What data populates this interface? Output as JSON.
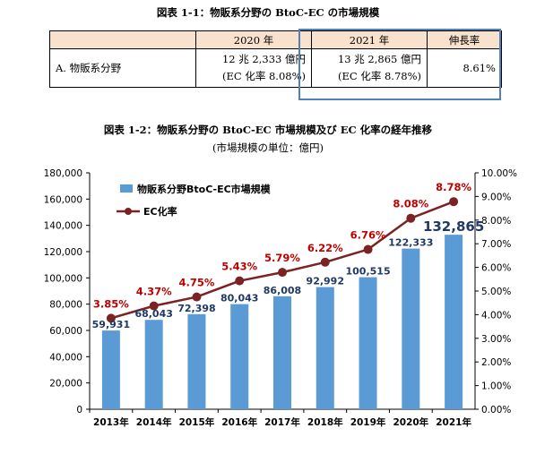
{
  "table": {
    "title": "図表 1-1：物販系分野の BtoC-EC の市場規模",
    "headers": [
      "",
      "2020 年",
      "2021 年",
      "伸長率"
    ],
    "row": {
      "category": "A. 物販系分野",
      "y2020_value": "12 兆 2,333 億円",
      "y2020_rate": "(EC 化率 8.08%)",
      "y2021_value": "13 兆 2,865 億円",
      "y2021_rate": "(EC 化率 8.78%)",
      "growth": "8.61%"
    }
  },
  "chart": {
    "title": "図表 1-2：物販系分野の BtoC-EC 市場規模及び EC 化率の経年推移",
    "subtitle": "(市場規模の単位：億円)"
  },
  "colors": {
    "bar": "#5b9bd5",
    "line": "#7b2323",
    "header_fill": "#f9e2cd",
    "highlight": "#4f81bd",
    "bar_label": "#1f3864",
    "rate_label": "#c00000"
  },
  "chart_data": {
    "type": "bar",
    "categories": [
      "2013年",
      "2014年",
      "2015年",
      "2016年",
      "2017年",
      "2018年",
      "2019年",
      "2020年",
      "2021年"
    ],
    "series": [
      {
        "name": "物販系分野BtoC-EC市場規模",
        "type": "bar",
        "axis": "left",
        "values": [
          59931,
          68043,
          72398,
          80043,
          86008,
          92992,
          100515,
          122333,
          132865
        ],
        "labels": [
          "59,931",
          "68,043",
          "72,398",
          "80,043",
          "86,008",
          "92,992",
          "100,515",
          "122,333",
          "132,865"
        ]
      },
      {
        "name": "EC化率",
        "type": "line",
        "axis": "right",
        "values": [
          3.85,
          4.37,
          4.75,
          5.43,
          5.79,
          6.22,
          6.76,
          8.08,
          8.78
        ],
        "labels": [
          "3.85%",
          "4.37%",
          "4.75%",
          "5.43%",
          "5.79%",
          "6.22%",
          "6.76%",
          "8.08%",
          "8.78%"
        ]
      }
    ],
    "y_left": {
      "lim": [
        0,
        180000
      ],
      "ticks": [
        0,
        20000,
        40000,
        60000,
        80000,
        100000,
        120000,
        140000,
        160000,
        180000
      ],
      "tick_labels": [
        "0",
        "20,000",
        "40,000",
        "60,000",
        "80,000",
        "100,000",
        "120,000",
        "140,000",
        "160,000",
        "180,000"
      ]
    },
    "y_right": {
      "lim": [
        0,
        10
      ],
      "ticks": [
        0,
        1,
        2,
        3,
        4,
        5,
        6,
        7,
        8,
        9,
        10
      ],
      "tick_labels": [
        "0.00%",
        "1.00%",
        "2.00%",
        "3.00%",
        "4.00%",
        "5.00%",
        "6.00%",
        "7.00%",
        "8.00%",
        "9.00%",
        "10.00%"
      ]
    },
    "legend_position": "top-left",
    "grid": false
  }
}
